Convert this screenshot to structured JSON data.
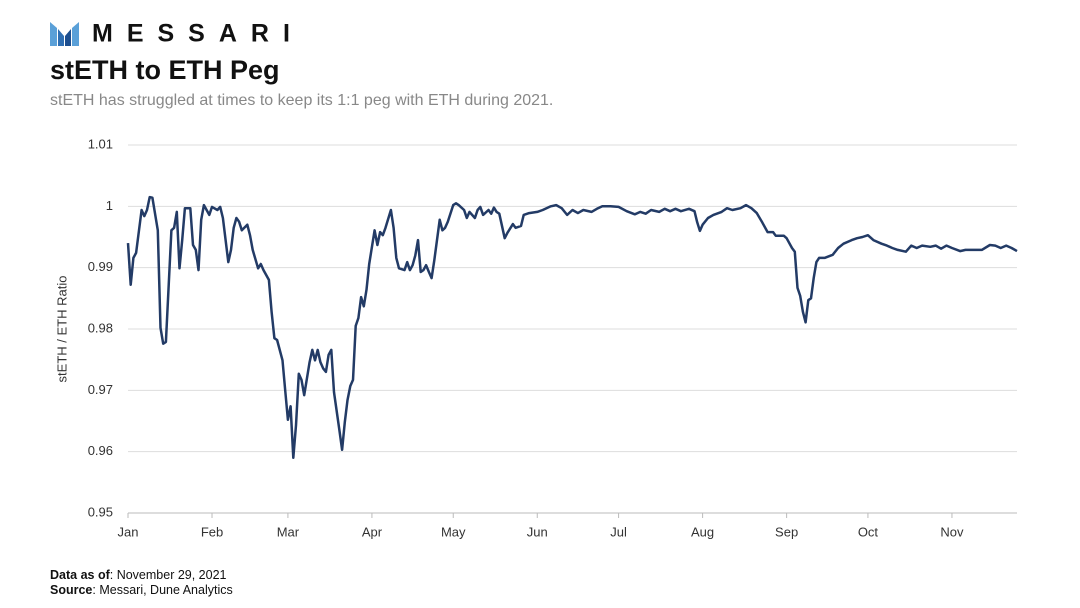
{
  "logo": {
    "text": "MESSARI"
  },
  "chart_data": {
    "type": "line",
    "title": "stETH to ETH Peg",
    "subtitle": "stETH has struggled at times to keep its 1:1 peg with ETH during 2021.",
    "ylabel": "stETH / ETH Ratio",
    "color": "#233b66",
    "grid": true,
    "xlim": [
      0,
      328
    ],
    "xticks": [
      {
        "value": 0,
        "label": "Jan"
      },
      {
        "value": 31,
        "label": "Feb"
      },
      {
        "value": 59,
        "label": "Mar"
      },
      {
        "value": 90,
        "label": "Apr"
      },
      {
        "value": 120,
        "label": "May"
      },
      {
        "value": 151,
        "label": "Jun"
      },
      {
        "value": 181,
        "label": "Jul"
      },
      {
        "value": 212,
        "label": "Aug"
      },
      {
        "value": 243,
        "label": "Sep"
      },
      {
        "value": 273,
        "label": "Oct"
      },
      {
        "value": 304,
        "label": "Nov"
      }
    ],
    "ylim": [
      0.95,
      1.01
    ],
    "yticks": [
      0.95,
      0.96,
      0.97,
      0.98,
      0.99,
      1,
      1.01
    ],
    "x": [
      0,
      1,
      2,
      3,
      5,
      6,
      7,
      8,
      9,
      11,
      12,
      13,
      14,
      16,
      17,
      18,
      19,
      20,
      21,
      23,
      24,
      25,
      26,
      27,
      28,
      29,
      30,
      31,
      33,
      34,
      35,
      37,
      38,
      39,
      40,
      41,
      42,
      44,
      45,
      46,
      48,
      49,
      50,
      51,
      52,
      53,
      54,
      55,
      57,
      58,
      59,
      60,
      61,
      62,
      63,
      64,
      65,
      67,
      68,
      69,
      70,
      71,
      72,
      73,
      74,
      75,
      76,
      78,
      79,
      80,
      81,
      82,
      83,
      84,
      85,
      86,
      87,
      88,
      89,
      91,
      92,
      93,
      94,
      95,
      97,
      98,
      99,
      100,
      102,
      103,
      104,
      105,
      106,
      107,
      108,
      109,
      110,
      111,
      112,
      113,
      115,
      116,
      117,
      118,
      120,
      121,
      122,
      124,
      125,
      126,
      128,
      129,
      130,
      131,
      133,
      134,
      135,
      136,
      137,
      139,
      140,
      142,
      143,
      145,
      146,
      148,
      151,
      153,
      156,
      158,
      160,
      162,
      164,
      166,
      168,
      171,
      173,
      175,
      178,
      181,
      184,
      187,
      189,
      191,
      193,
      196,
      198,
      200,
      202,
      204,
      207,
      209,
      210,
      211,
      212,
      214,
      216,
      219,
      221,
      223,
      226,
      228,
      230,
      232,
      234,
      236,
      238,
      239,
      242,
      243,
      245,
      246,
      247,
      248,
      249,
      250,
      251,
      252,
      253,
      254,
      255,
      257,
      260,
      262,
      264,
      267,
      269,
      271,
      273,
      275,
      278,
      280,
      282,
      284,
      287,
      289,
      291,
      293,
      296,
      298,
      300,
      302,
      304,
      307,
      309,
      311,
      313,
      315,
      318,
      320,
      322,
      324,
      326,
      328
    ],
    "values": [
      0.994,
      0.9872,
      0.9916,
      0.9924,
      0.9994,
      0.9984,
      0.9994,
      1.0015,
      1.0014,
      0.9961,
      0.9802,
      0.9776,
      0.9779,
      0.9961,
      0.9965,
      0.9991,
      0.9899,
      0.9945,
      0.9997,
      0.9997,
      0.9937,
      0.9929,
      0.9896,
      0.9978,
      1.0002,
      0.9994,
      0.9986,
      0.9999,
      0.9994,
      0.9999,
      0.9981,
      0.9909,
      0.9929,
      0.9965,
      0.9981,
      0.9975,
      0.9961,
      0.997,
      0.9953,
      0.9929,
      0.9899,
      0.9906,
      0.9896,
      0.9888,
      0.988,
      0.9828,
      0.9785,
      0.9782,
      0.9749,
      0.97,
      0.9652,
      0.9674,
      0.959,
      0.9643,
      0.9727,
      0.9717,
      0.9692,
      0.9746,
      0.9766,
      0.9749,
      0.9766,
      0.9746,
      0.9736,
      0.973,
      0.9758,
      0.9766,
      0.9697,
      0.9635,
      0.9603,
      0.9648,
      0.9684,
      0.9707,
      0.9717,
      0.9805,
      0.9818,
      0.9852,
      0.9837,
      0.9864,
      0.9906,
      0.9961,
      0.9937,
      0.9958,
      0.9953,
      0.9965,
      0.9994,
      0.9965,
      0.9916,
      0.9899,
      0.9896,
      0.9909,
      0.9896,
      0.9904,
      0.992,
      0.9945,
      0.9893,
      0.9896,
      0.9904,
      0.9893,
      0.9883,
      0.9912,
      0.9978,
      0.9961,
      0.9965,
      0.9975,
      1.0002,
      1.0005,
      1.0002,
      0.9994,
      0.9981,
      0.9991,
      0.9981,
      0.9994,
      0.9999,
      0.9986,
      0.9994,
      0.9988,
      0.9998,
      0.9991,
      0.9988,
      0.9948,
      0.9957,
      0.9971,
      0.9965,
      0.9968,
      0.9986,
      0.9989,
      0.9991,
      0.9994,
      1.0,
      1.0002,
      0.9997,
      0.9986,
      0.9994,
      0.9989,
      0.9994,
      0.9991,
      0.9996,
      1.0,
      1.0,
      0.9999,
      0.9992,
      0.9987,
      0.9991,
      0.9988,
      0.9994,
      0.9991,
      0.9996,
      0.9992,
      0.9996,
      0.9992,
      0.9996,
      0.9992,
      0.9974,
      0.996,
      0.997,
      0.9981,
      0.9986,
      0.9991,
      0.9997,
      0.9994,
      0.9997,
      1.0002,
      0.9997,
      0.9989,
      0.9974,
      0.9958,
      0.9958,
      0.9952,
      0.9952,
      0.9948,
      0.9932,
      0.9926,
      0.9867,
      0.9854,
      0.9828,
      0.9811,
      0.9847,
      0.985,
      0.9883,
      0.9909,
      0.9916,
      0.9916,
      0.9921,
      0.9932,
      0.9939,
      0.9945,
      0.9948,
      0.995,
      0.9953,
      0.9945,
      0.9939,
      0.9936,
      0.9932,
      0.9929,
      0.9926,
      0.9936,
      0.9932,
      0.9936,
      0.9934,
      0.9936,
      0.9931,
      0.9936,
      0.9932,
      0.9927,
      0.9929,
      0.9929,
      0.9929,
      0.9929,
      0.9937,
      0.9936,
      0.9932,
      0.9936,
      0.9932,
      0.9927
    ]
  },
  "footer": {
    "data_label": "Data as of",
    "data_text": ": November 29, 2021",
    "source_label": "Source",
    "source_text": ": Messari, Dune Analytics"
  }
}
